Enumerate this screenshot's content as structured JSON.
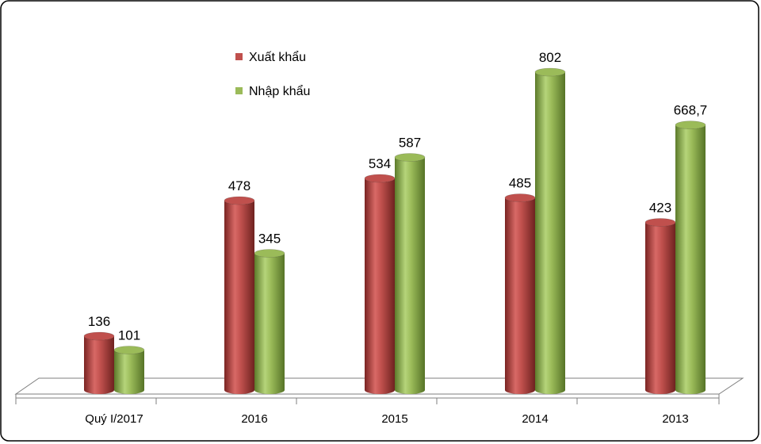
{
  "chart_data": {
    "type": "bar",
    "categories": [
      "Quý I/2017",
      "2016",
      "2015",
      "2014",
      "2013"
    ],
    "series": [
      {
        "name": "Xuất khẩu",
        "values": [
          136,
          478,
          534,
          485,
          423
        ],
        "labels": [
          "136",
          "478",
          "534",
          "485",
          "423"
        ],
        "color": "#C0504D"
      },
      {
        "name": "Nhập khẩu",
        "values": [
          101,
          345,
          587,
          802,
          668.7
        ],
        "labels": [
          "101",
          "345",
          "587",
          "802",
          "668,7"
        ],
        "color": "#9BBB59"
      }
    ],
    "ylim": [
      0,
      900
    ],
    "title": "",
    "xlabel": "",
    "ylabel": "",
    "grid": false,
    "legend": "top-left",
    "style": "3d-cylinder"
  }
}
